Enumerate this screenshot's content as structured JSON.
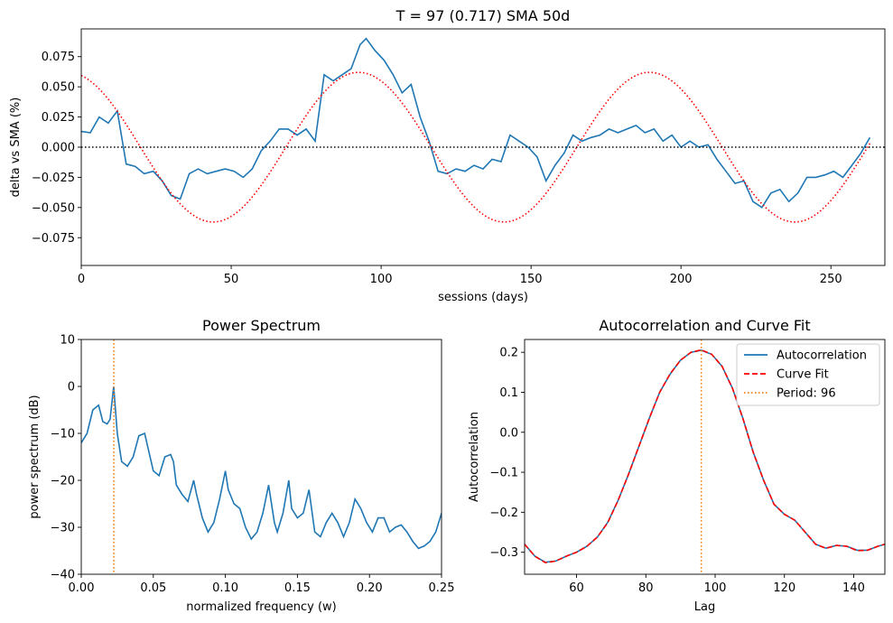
{
  "chart_data": [
    {
      "type": "line",
      "title": "T = 97 (0.717)      SMA 50d",
      "xlabel": "sessions (days)",
      "ylabel": "delta vs SMA (%)",
      "xlim": [
        0,
        268
      ],
      "ylim": [
        -0.098,
        0.098
      ],
      "xticks": [
        0,
        50,
        100,
        150,
        200,
        250
      ],
      "yticks": [
        -0.075,
        -0.05,
        -0.025,
        0.0,
        0.025,
        0.05,
        0.075
      ],
      "xtick_labels": [
        "0",
        "50",
        "100",
        "150",
        "200",
        "250"
      ],
      "ytick_labels": [
        "−0.075",
        "−0.050",
        "−0.025",
        "0.000",
        "0.025",
        "0.050",
        "0.075"
      ],
      "grid": false,
      "series": [
        {
          "color": "#1f77b4",
          "style": "solid",
          "x": [
            0,
            3,
            6,
            9,
            12,
            15,
            18,
            21,
            24,
            27,
            30,
            33,
            36,
            39,
            42,
            45,
            48,
            51,
            54,
            57,
            60,
            63,
            66,
            69,
            72,
            75,
            78,
            81,
            84,
            87,
            90,
            93,
            95,
            98,
            101,
            104,
            107,
            110,
            113,
            116,
            119,
            122,
            125,
            128,
            131,
            134,
            137,
            140,
            143,
            146,
            149,
            152,
            155,
            158,
            161,
            164,
            167,
            170,
            173,
            176,
            179,
            182,
            185,
            188,
            191,
            194,
            197,
            200,
            203,
            206,
            209,
            212,
            215,
            218,
            221,
            224,
            227,
            230,
            233,
            236,
            239,
            242,
            245,
            248,
            251,
            254,
            257,
            260,
            263
          ],
          "y": [
            0.013,
            0.012,
            0.025,
            0.02,
            0.03,
            -0.014,
            -0.016,
            -0.022,
            -0.02,
            -0.028,
            -0.04,
            -0.043,
            -0.022,
            -0.018,
            -0.022,
            -0.02,
            -0.018,
            -0.02,
            -0.025,
            -0.018,
            -0.003,
            0.005,
            0.015,
            0.015,
            0.01,
            0.015,
            0.005,
            0.06,
            0.055,
            0.06,
            0.065,
            0.085,
            0.09,
            0.08,
            0.072,
            0.06,
            0.045,
            0.052,
            0.025,
            0.005,
            -0.02,
            -0.022,
            -0.018,
            -0.02,
            -0.015,
            -0.018,
            -0.01,
            -0.012,
            0.01,
            0.005,
            0.0,
            -0.008,
            -0.028,
            -0.015,
            -0.005,
            0.01,
            0.005,
            0.008,
            0.01,
            0.015,
            0.012,
            0.015,
            0.018,
            0.012,
            0.015,
            0.005,
            0.01,
            0.0,
            0.005,
            0.0,
            0.002,
            -0.01,
            -0.02,
            -0.03,
            -0.028,
            -0.045,
            -0.05,
            -0.038,
            -0.035,
            -0.045,
            -0.038,
            -0.025,
            -0.025,
            -0.023,
            -0.02,
            -0.025,
            -0.015,
            -0.005,
            0.008
          ]
        },
        {
          "color": "#ff0000",
          "style": "dotted",
          "sine": {
            "amplitude": 0.062,
            "period": 97,
            "phase_max_day": 92.5,
            "x_start": 0,
            "x_end": 263
          }
        },
        {
          "color": "#000000",
          "style": "dotted",
          "hline": 0.0
        }
      ]
    },
    {
      "type": "line",
      "title": "Power Spectrum",
      "xlabel": "normalized frequency (w)",
      "ylabel": "power spectrum (dB)",
      "xlim": [
        0,
        0.25
      ],
      "ylim": [
        -40,
        10
      ],
      "xticks": [
        0.0,
        0.05,
        0.1,
        0.15,
        0.2,
        0.25
      ],
      "yticks": [
        -40,
        -30,
        -20,
        -10,
        0,
        10
      ],
      "xtick_labels": [
        "0.00",
        "0.05",
        "0.10",
        "0.15",
        "0.20",
        "0.25"
      ],
      "ytick_labels": [
        "−40",
        "−30",
        "−20",
        "−10",
        "0",
        "10"
      ],
      "grid": false,
      "series": [
        {
          "color": "#1f77b4",
          "style": "solid",
          "x": [
            0.0,
            0.004,
            0.008,
            0.012,
            0.015,
            0.018,
            0.02,
            0.0225,
            0.025,
            0.028,
            0.032,
            0.036,
            0.04,
            0.044,
            0.047,
            0.05,
            0.054,
            0.058,
            0.062,
            0.064,
            0.066,
            0.07,
            0.074,
            0.078,
            0.08,
            0.084,
            0.088,
            0.092,
            0.096,
            0.1,
            0.102,
            0.106,
            0.11,
            0.114,
            0.118,
            0.122,
            0.126,
            0.13,
            0.134,
            0.136,
            0.14,
            0.144,
            0.146,
            0.15,
            0.154,
            0.158,
            0.162,
            0.166,
            0.17,
            0.174,
            0.178,
            0.182,
            0.186,
            0.19,
            0.194,
            0.198,
            0.202,
            0.206,
            0.21,
            0.214,
            0.218,
            0.222,
            0.226,
            0.23,
            0.234,
            0.238,
            0.242,
            0.246,
            0.25
          ],
          "y": [
            -12,
            -10,
            -5,
            -4,
            -7.5,
            -8,
            -7,
            0,
            -10,
            -16,
            -17,
            -15,
            -10.5,
            -10,
            -14,
            -18,
            -19,
            -15,
            -14.5,
            -16,
            -21,
            -23,
            -24.5,
            -20,
            -23,
            -28,
            -31,
            -29,
            -24,
            -18,
            -22,
            -25,
            -26,
            -30,
            -32.5,
            -31,
            -27,
            -21,
            -29,
            -31,
            -27,
            -20,
            -26,
            -28,
            -27,
            -22,
            -31,
            -32,
            -29,
            -27,
            -29,
            -32,
            -29,
            -24,
            -26,
            -29,
            -31,
            -28,
            -28,
            -31,
            -30,
            -29.5,
            -31,
            -33,
            -34.5,
            -34,
            -33,
            -31,
            -27
          ]
        },
        {
          "color": "#ff7f0e",
          "style": "dotted",
          "vline": 0.0226
        }
      ]
    },
    {
      "type": "line",
      "title": "Autocorrelation and Curve Fit",
      "xlabel": "Lag",
      "ylabel": "Autocorrelation",
      "xlim": [
        45,
        149
      ],
      "ylim": [
        -0.355,
        0.232
      ],
      "xticks": [
        60,
        80,
        100,
        120,
        140
      ],
      "yticks": [
        -0.3,
        -0.2,
        -0.1,
        0.0,
        0.1,
        0.2
      ],
      "xtick_labels": [
        "60",
        "80",
        "100",
        "120",
        "140"
      ],
      "ytick_labels": [
        "−0.3",
        "−0.2",
        "−0.1",
        "0.0",
        "0.1",
        "0.2"
      ],
      "grid": false,
      "legend_position": "top-right",
      "series": [
        {
          "name": "Autocorrelation",
          "color": "#1f77b4",
          "style": "solid",
          "x": [
            45,
            48,
            51,
            54,
            57,
            60,
            63,
            66,
            69,
            72,
            75,
            78,
            81,
            84,
            87,
            90,
            93,
            96,
            99,
            102,
            105,
            108,
            111,
            114,
            117,
            120,
            123,
            126,
            129,
            132,
            135,
            138,
            141,
            144,
            147,
            149
          ],
          "y": [
            -0.28,
            -0.31,
            -0.325,
            -0.322,
            -0.31,
            -0.3,
            -0.285,
            -0.262,
            -0.225,
            -0.17,
            -0.105,
            -0.035,
            0.035,
            0.1,
            0.145,
            0.18,
            0.2,
            0.205,
            0.195,
            0.165,
            0.11,
            0.035,
            -0.05,
            -0.12,
            -0.18,
            -0.205,
            -0.22,
            -0.25,
            -0.28,
            -0.29,
            -0.283,
            -0.285,
            -0.295,
            -0.295,
            -0.285,
            -0.28
          ]
        },
        {
          "name": "Curve Fit",
          "color": "#ff0000",
          "style": "dashed",
          "x": [
            45,
            48,
            51,
            54,
            57,
            60,
            63,
            66,
            69,
            72,
            75,
            78,
            81,
            84,
            87,
            90,
            93,
            96,
            99,
            102,
            105,
            108,
            111,
            114,
            117,
            120,
            123,
            126,
            129,
            132,
            135,
            138,
            141,
            144,
            147,
            149
          ],
          "y": [
            -0.28,
            -0.31,
            -0.326,
            -0.322,
            -0.31,
            -0.3,
            -0.285,
            -0.262,
            -0.226,
            -0.17,
            -0.105,
            -0.035,
            0.035,
            0.1,
            0.146,
            0.18,
            0.2,
            0.206,
            0.195,
            0.165,
            0.11,
            0.035,
            -0.05,
            -0.12,
            -0.18,
            -0.205,
            -0.22,
            -0.25,
            -0.28,
            -0.29,
            -0.283,
            -0.285,
            -0.296,
            -0.295,
            -0.285,
            -0.28
          ]
        },
        {
          "name": "Period: 96",
          "color": "#ff7f0e",
          "style": "dotted",
          "vline": 96
        }
      ]
    }
  ]
}
